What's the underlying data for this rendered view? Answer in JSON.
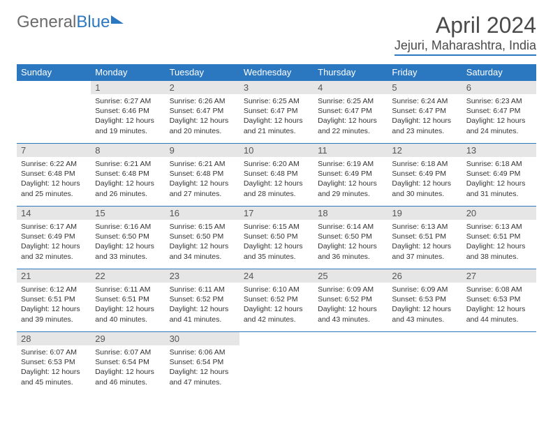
{
  "logo": {
    "part1": "General",
    "part2": "Blue"
  },
  "title": "April 2024",
  "location": "Jejuri, Maharashtra, India",
  "colors": {
    "accent": "#2b78c1",
    "header_bg": "#2b78c1",
    "header_fg": "#ffffff",
    "daynum_bg": "#e6e6e6",
    "text": "#333333",
    "logo_gray": "#6b6b6b"
  },
  "weekdays": [
    "Sunday",
    "Monday",
    "Tuesday",
    "Wednesday",
    "Thursday",
    "Friday",
    "Saturday"
  ],
  "start_offset": 1,
  "days": [
    {
      "n": 1,
      "sr": "6:27 AM",
      "ss": "6:46 PM",
      "dl": "12 hours and 19 minutes."
    },
    {
      "n": 2,
      "sr": "6:26 AM",
      "ss": "6:47 PM",
      "dl": "12 hours and 20 minutes."
    },
    {
      "n": 3,
      "sr": "6:25 AM",
      "ss": "6:47 PM",
      "dl": "12 hours and 21 minutes."
    },
    {
      "n": 4,
      "sr": "6:25 AM",
      "ss": "6:47 PM",
      "dl": "12 hours and 22 minutes."
    },
    {
      "n": 5,
      "sr": "6:24 AM",
      "ss": "6:47 PM",
      "dl": "12 hours and 23 minutes."
    },
    {
      "n": 6,
      "sr": "6:23 AM",
      "ss": "6:47 PM",
      "dl": "12 hours and 24 minutes."
    },
    {
      "n": 7,
      "sr": "6:22 AM",
      "ss": "6:48 PM",
      "dl": "12 hours and 25 minutes."
    },
    {
      "n": 8,
      "sr": "6:21 AM",
      "ss": "6:48 PM",
      "dl": "12 hours and 26 minutes."
    },
    {
      "n": 9,
      "sr": "6:21 AM",
      "ss": "6:48 PM",
      "dl": "12 hours and 27 minutes."
    },
    {
      "n": 10,
      "sr": "6:20 AM",
      "ss": "6:48 PM",
      "dl": "12 hours and 28 minutes."
    },
    {
      "n": 11,
      "sr": "6:19 AM",
      "ss": "6:49 PM",
      "dl": "12 hours and 29 minutes."
    },
    {
      "n": 12,
      "sr": "6:18 AM",
      "ss": "6:49 PM",
      "dl": "12 hours and 30 minutes."
    },
    {
      "n": 13,
      "sr": "6:18 AM",
      "ss": "6:49 PM",
      "dl": "12 hours and 31 minutes."
    },
    {
      "n": 14,
      "sr": "6:17 AM",
      "ss": "6:49 PM",
      "dl": "12 hours and 32 minutes."
    },
    {
      "n": 15,
      "sr": "6:16 AM",
      "ss": "6:50 PM",
      "dl": "12 hours and 33 minutes."
    },
    {
      "n": 16,
      "sr": "6:15 AM",
      "ss": "6:50 PM",
      "dl": "12 hours and 34 minutes."
    },
    {
      "n": 17,
      "sr": "6:15 AM",
      "ss": "6:50 PM",
      "dl": "12 hours and 35 minutes."
    },
    {
      "n": 18,
      "sr": "6:14 AM",
      "ss": "6:50 PM",
      "dl": "12 hours and 36 minutes."
    },
    {
      "n": 19,
      "sr": "6:13 AM",
      "ss": "6:51 PM",
      "dl": "12 hours and 37 minutes."
    },
    {
      "n": 20,
      "sr": "6:13 AM",
      "ss": "6:51 PM",
      "dl": "12 hours and 38 minutes."
    },
    {
      "n": 21,
      "sr": "6:12 AM",
      "ss": "6:51 PM",
      "dl": "12 hours and 39 minutes."
    },
    {
      "n": 22,
      "sr": "6:11 AM",
      "ss": "6:51 PM",
      "dl": "12 hours and 40 minutes."
    },
    {
      "n": 23,
      "sr": "6:11 AM",
      "ss": "6:52 PM",
      "dl": "12 hours and 41 minutes."
    },
    {
      "n": 24,
      "sr": "6:10 AM",
      "ss": "6:52 PM",
      "dl": "12 hours and 42 minutes."
    },
    {
      "n": 25,
      "sr": "6:09 AM",
      "ss": "6:52 PM",
      "dl": "12 hours and 43 minutes."
    },
    {
      "n": 26,
      "sr": "6:09 AM",
      "ss": "6:53 PM",
      "dl": "12 hours and 43 minutes."
    },
    {
      "n": 27,
      "sr": "6:08 AM",
      "ss": "6:53 PM",
      "dl": "12 hours and 44 minutes."
    },
    {
      "n": 28,
      "sr": "6:07 AM",
      "ss": "6:53 PM",
      "dl": "12 hours and 45 minutes."
    },
    {
      "n": 29,
      "sr": "6:07 AM",
      "ss": "6:54 PM",
      "dl": "12 hours and 46 minutes."
    },
    {
      "n": 30,
      "sr": "6:06 AM",
      "ss": "6:54 PM",
      "dl": "12 hours and 47 minutes."
    }
  ],
  "labels": {
    "sunrise": "Sunrise:",
    "sunset": "Sunset:",
    "daylight": "Daylight:"
  }
}
